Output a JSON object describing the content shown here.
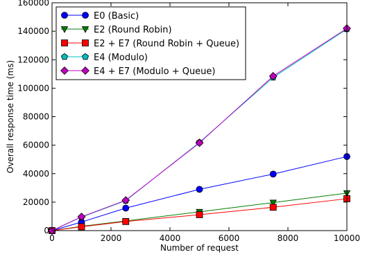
{
  "chart_data": {
    "type": "line",
    "xlabel": "Number of request",
    "ylabel": "Overall response time (ms)",
    "xlim": [
      0,
      10000
    ],
    "ylim": [
      0,
      160000
    ],
    "x_ticks": [
      "0",
      "2000",
      "4000",
      "6000",
      "8000",
      "10000"
    ],
    "y_ticks": [
      "0",
      "20000",
      "40000",
      "60000",
      "80000",
      "100000",
      "120000",
      "140000",
      "160000"
    ],
    "x_tick_values": [
      0,
      2000,
      4000,
      6000,
      8000,
      10000
    ],
    "y_tick_values": [
      0,
      20000,
      40000,
      60000,
      80000,
      100000,
      120000,
      140000,
      160000
    ],
    "grid": false,
    "legend_position": "top-left",
    "series": [
      {
        "name": "E0 (Basic)",
        "color": "#0000ff",
        "marker": "circle",
        "x": [
          0,
          1000,
          2500,
          5000,
          7500,
          10000
        ],
        "y": [
          0,
          6000,
          15800,
          29000,
          39700,
          52000
        ]
      },
      {
        "name": "E2 (Round Robin)",
        "color": "#007f00",
        "marker": "triangle-down",
        "x": [
          0,
          1000,
          2500,
          5000,
          7500,
          10000
        ],
        "y": [
          0,
          3000,
          6800,
          13200,
          19700,
          26300
        ]
      },
      {
        "name": "E2 + E7 (Round Robin + Queue)",
        "color": "#ff0000",
        "marker": "square",
        "x": [
          0,
          1000,
          2500,
          5000,
          7500,
          10000
        ],
        "y": [
          0,
          2700,
          6400,
          11200,
          16400,
          22400
        ]
      },
      {
        "name": "E4 (Modulo)",
        "color": "#00bfbf",
        "marker": "pentagon",
        "x": [
          0,
          1000,
          2500,
          5000,
          7500,
          10000
        ],
        "y": [
          0,
          9500,
          21000,
          62000,
          107500,
          141500
        ]
      },
      {
        "name": "E4 + E7 (Modulo + Queue)",
        "color": "#bf00bf",
        "marker": "diamond",
        "x": [
          0,
          1000,
          2500,
          5000,
          7500,
          10000
        ],
        "y": [
          0,
          9700,
          21300,
          61600,
          108500,
          142000
        ]
      }
    ]
  }
}
